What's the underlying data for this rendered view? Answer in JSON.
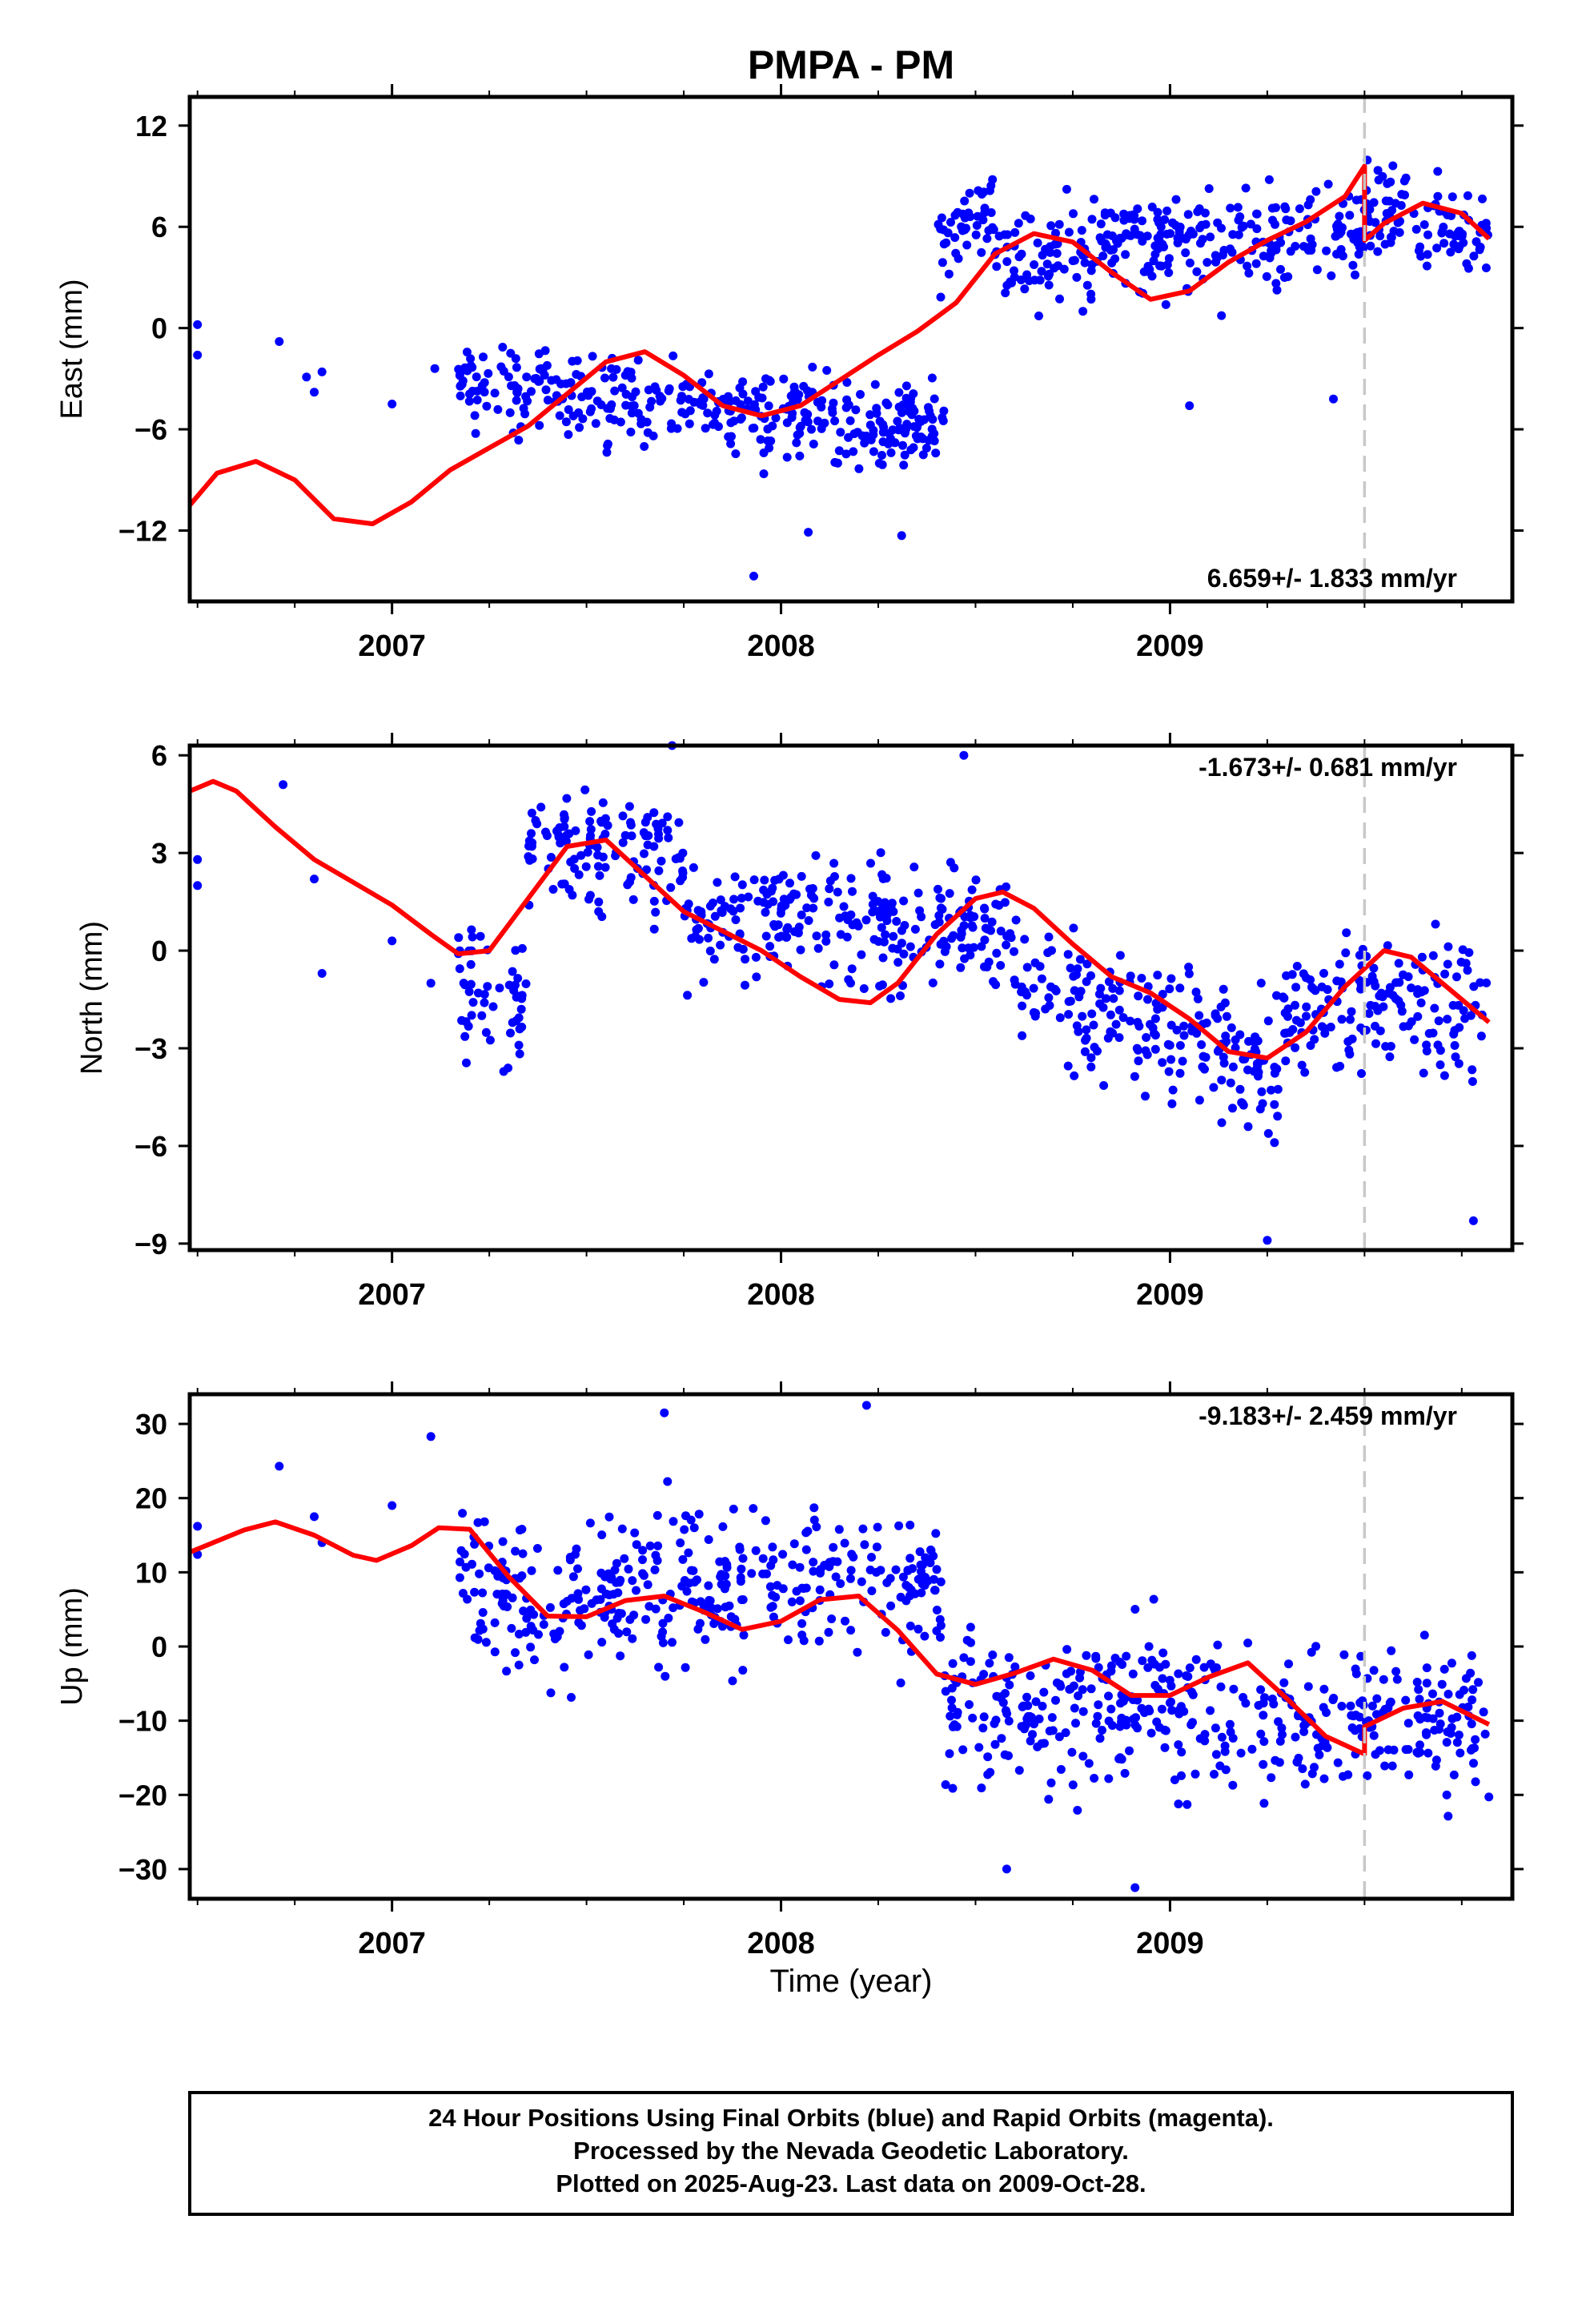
{
  "title": "PMPA - PM",
  "xlabel": "Time (year)",
  "x_ticks": [
    "2007",
    "2008",
    "2009"
  ],
  "footer": {
    "line1": "24 Hour Positions Using Final Orbits (blue) and Rapid Orbits (magenta).",
    "line2": "Processed by the Nevada Geodetic Laboratory.",
    "line3": "Plotted on 2025-Aug-23. Last data on 2009-Oct-28."
  },
  "colors": {
    "points": "#0000ff",
    "model": "#ff0000",
    "equipment_change": "#c8c8c8",
    "frame": "#000000"
  },
  "chart_data": [
    {
      "type": "scatter",
      "name": "east",
      "ylabel": "East (mm)",
      "rate": "6.659+/- 1.833 mm/yr",
      "xlim": [
        2006.48,
        2009.88
      ],
      "ylim": [
        -16.2,
        13.7
      ],
      "y_ticks": [
        12,
        6,
        0,
        -6,
        -12
      ],
      "y_tick_labels": [
        "12",
        "6",
        "0",
        "−6",
        "−12"
      ],
      "equipment_change_x": 2009.5,
      "fit_model": {
        "x": [
          2006.48,
          2006.55,
          2006.65,
          2006.75,
          2006.85,
          2006.95,
          2007.05,
          2007.15,
          2007.25,
          2007.35,
          2007.45,
          2007.55,
          2007.65,
          2007.75,
          2007.85,
          2007.95,
          2008.05,
          2008.15,
          2008.25,
          2008.35,
          2008.45,
          2008.55,
          2008.65,
          2008.75,
          2008.85,
          2008.95,
          2009.05,
          2009.15,
          2009.25,
          2009.35,
          2009.45,
          2009.5,
          2009.5,
          2009.55,
          2009.65,
          2009.75,
          2009.82
        ],
        "y": [
          -10.5,
          -8.6,
          -7.9,
          -9.0,
          -11.3,
          -11.6,
          -10.3,
          -8.4,
          -7.1,
          -5.8,
          -3.9,
          -2.0,
          -1.4,
          -2.8,
          -4.6,
          -5.2,
          -4.6,
          -3.1,
          -1.6,
          -0.2,
          1.5,
          4.4,
          5.6,
          5.1,
          3.3,
          1.7,
          2.2,
          3.9,
          5.2,
          6.3,
          7.8,
          9.6,
          5.2,
          6.2,
          7.4,
          6.8,
          5.3
        ]
      },
      "sample_points": {
        "x": [
          2006.5,
          2006.5,
          2006.71,
          2006.78,
          2006.8,
          2006.82,
          2007.0,
          2007.11,
          2009.42,
          2009.05,
          2008.07,
          2007.93,
          2008.31
        ],
        "y": [
          0.2,
          -1.6,
          -0.8,
          -2.9,
          -3.8,
          -2.6,
          -4.5,
          -2.4,
          -4.2,
          -4.6,
          -12.1,
          -14.7,
          -12.3
        ]
      },
      "segments": [
        {
          "x0": 2007.17,
          "x1": 2008.42,
          "y0": -3.3,
          "y1": -5.9,
          "sd": 1.8
        },
        {
          "x0": 2008.4,
          "x1": 2008.55,
          "y0": 5.0,
          "y1": 6.8,
          "sd": 1.8
        },
        {
          "x0": 2008.55,
          "x1": 2009.5,
          "y0": 4.4,
          "y1": 5.8,
          "sd": 2.0
        },
        {
          "x0": 2009.5,
          "x1": 2009.82,
          "y0": 7.0,
          "y1": 5.5,
          "sd": 1.9
        }
      ]
    },
    {
      "type": "scatter",
      "name": "north",
      "ylabel": "North (mm)",
      "rate": "-1.673+/- 0.681 mm/yr",
      "xlim": [
        2006.48,
        2009.88
      ],
      "ylim": [
        -9.2,
        6.3
      ],
      "y_ticks": [
        6,
        3,
        0,
        -3,
        -6,
        -9
      ],
      "y_tick_labels": [
        "6",
        "3",
        "0",
        "−3",
        "−6",
        "−9"
      ],
      "equipment_change_x": 2009.5,
      "fit_model": {
        "x": [
          2006.48,
          2006.54,
          2006.6,
          2006.7,
          2006.8,
          2006.9,
          2007.0,
          2007.1,
          2007.17,
          2007.25,
          2007.35,
          2007.45,
          2007.55,
          2007.65,
          2007.75,
          2007.85,
          2007.95,
          2008.05,
          2008.15,
          2008.23,
          2008.3,
          2008.4,
          2008.5,
          2008.57,
          2008.65,
          2008.75,
          2008.85,
          2008.95,
          2009.05,
          2009.15,
          2009.25,
          2009.35,
          2009.45,
          2009.55,
          2009.62,
          2009.7,
          2009.82
        ],
        "y": [
          4.9,
          5.2,
          4.9,
          3.8,
          2.8,
          2.1,
          1.4,
          0.5,
          -0.1,
          0.0,
          1.6,
          3.2,
          3.4,
          2.3,
          1.2,
          0.6,
          0.0,
          -0.8,
          -1.5,
          -1.6,
          -1.0,
          0.5,
          1.6,
          1.8,
          1.3,
          0.2,
          -0.8,
          -1.3,
          -2.1,
          -3.1,
          -3.3,
          -2.5,
          -1.1,
          0.0,
          -0.2,
          -1.0,
          -2.2
        ]
      },
      "sample_points": {
        "x": [
          2006.5,
          2006.5,
          2006.72,
          2006.8,
          2006.82,
          2007.0,
          2007.1,
          2008.47,
          2009.25,
          2009.78,
          2007.72
        ],
        "y": [
          2.8,
          2.0,
          5.1,
          2.2,
          -0.7,
          0.3,
          -1.0,
          6.0,
          -8.9,
          -8.3,
          6.3
        ]
      },
      "segments": [
        {
          "x0": 2007.17,
          "x1": 2007.35,
          "y0": -1.2,
          "y1": -1.6,
          "sd": 1.4
        },
        {
          "x0": 2007.35,
          "x1": 2007.75,
          "y0": 3.3,
          "y1": 3.0,
          "sd": 1.3
        },
        {
          "x0": 2007.75,
          "x1": 2008.6,
          "y0": 1.0,
          "y1": 0.8,
          "sd": 1.3
        },
        {
          "x0": 2008.6,
          "x1": 2009.28,
          "y0": -0.8,
          "y1": -3.8,
          "sd": 1.4
        },
        {
          "x0": 2009.28,
          "x1": 2009.82,
          "y0": -1.5,
          "y1": -1.8,
          "sd": 1.4
        }
      ]
    },
    {
      "type": "scatter",
      "name": "up",
      "ylabel": "Up (mm)",
      "rate": "-9.183+/- 2.459 mm/yr",
      "xlim": [
        2006.48,
        2009.88
      ],
      "ylim": [
        -34,
        34
      ],
      "y_ticks": [
        30,
        20,
        10,
        0,
        -10,
        -20,
        -30
      ],
      "y_tick_labels": [
        "30",
        "20",
        "10",
        "0",
        "−10",
        "−20",
        "−30"
      ],
      "equipment_change_x": 2009.5,
      "fit_model": {
        "x": [
          2006.48,
          2006.55,
          2006.62,
          2006.7,
          2006.8,
          2006.9,
          2006.96,
          2007.05,
          2007.12,
          2007.2,
          2007.3,
          2007.4,
          2007.5,
          2007.6,
          2007.7,
          2007.8,
          2007.9,
          2008.0,
          2008.1,
          2008.2,
          2008.3,
          2008.4,
          2008.5,
          2008.6,
          2008.7,
          2008.8,
          2008.9,
          2009.0,
          2009.1,
          2009.2,
          2009.3,
          2009.4,
          2009.5,
          2009.5,
          2009.6,
          2009.7,
          2009.82
        ],
        "y": [
          12.7,
          14.2,
          15.7,
          16.8,
          15.0,
          12.3,
          11.6,
          13.6,
          16.0,
          15.8,
          9.4,
          4.1,
          4.0,
          6.2,
          6.8,
          4.7,
          2.3,
          3.4,
          6.3,
          6.8,
          2.2,
          -3.7,
          -5.1,
          -3.6,
          -1.7,
          -3.2,
          -6.6,
          -6.6,
          -4.1,
          -2.2,
          -7.0,
          -12.1,
          -14.5,
          -10.8,
          -8.3,
          -7.4,
          -10.5
        ]
      },
      "sample_points": {
        "x": [
          2006.5,
          2006.5,
          2006.71,
          2006.8,
          2006.82,
          2007.0,
          2007.1,
          2008.22,
          2007.7,
          2008.91,
          2008.58
        ],
        "y": [
          16.2,
          12.4,
          24.3,
          17.5,
          14.0,
          19.0,
          28.3,
          32.5,
          31.5,
          -32.5,
          -30.0
        ]
      },
      "segments": [
        {
          "x0": 2007.17,
          "x1": 2007.45,
          "y0": 10.5,
          "y1": 2.0,
          "sd": 7.0
        },
        {
          "x0": 2007.45,
          "x1": 2008.42,
          "y0": 7.5,
          "y1": 10.0,
          "sd": 7.0
        },
        {
          "x0": 2008.42,
          "x1": 2009.5,
          "y0": -8.0,
          "y1": -10.5,
          "sd": 7.0
        },
        {
          "x0": 2009.5,
          "x1": 2009.82,
          "y0": -11.0,
          "y1": -9.0,
          "sd": 7.0
        }
      ]
    }
  ]
}
